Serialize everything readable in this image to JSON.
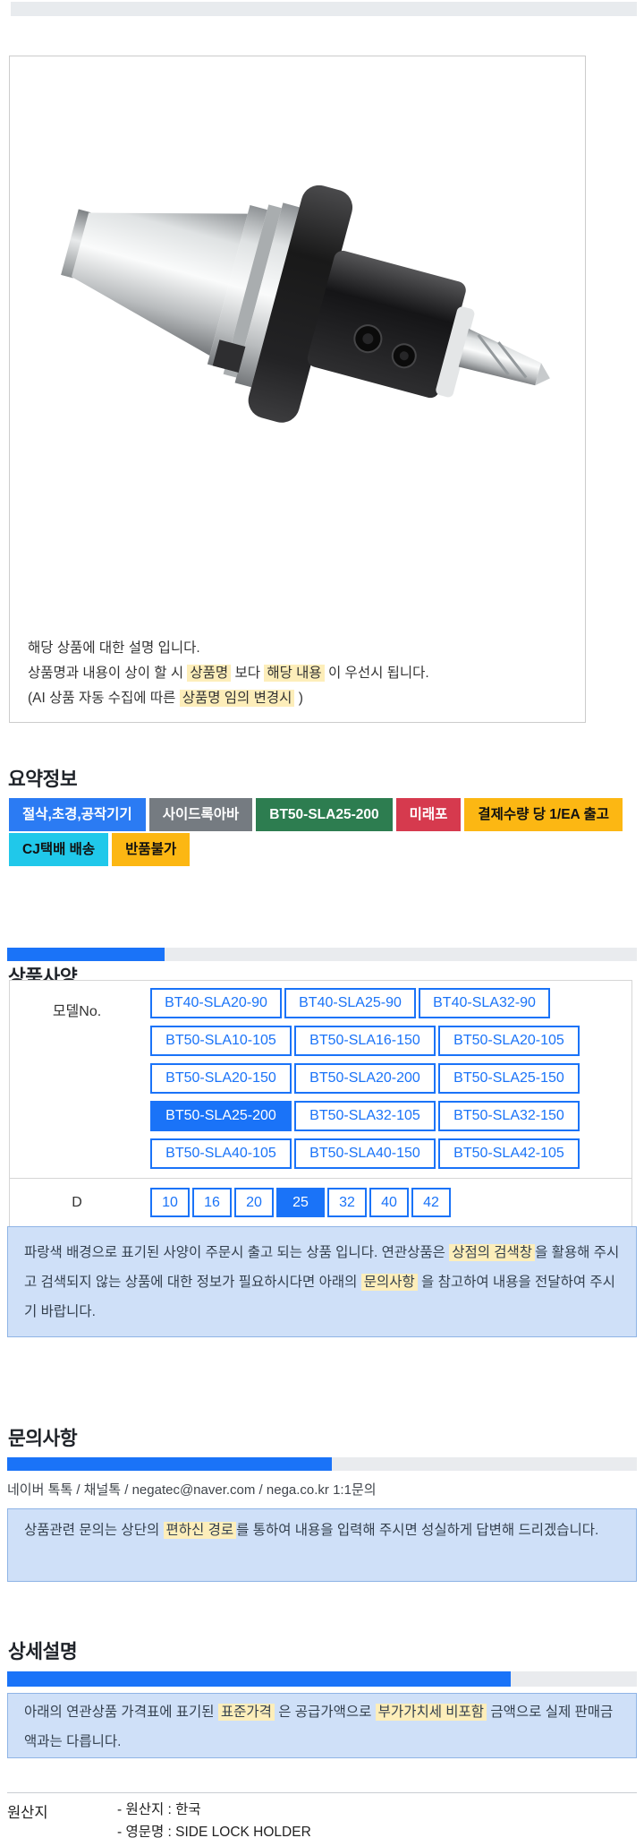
{
  "colors": {
    "accent_blue": "#1a73f8",
    "highlight_yellow": "#fdeeba",
    "note_background": "#cfe0f8",
    "note_border": "#8fb4e6",
    "scroll_track": "#e9ebee",
    "topbar_gray": "#e8ebee"
  },
  "product_box": {
    "image_name": "bt50-side-lock-holder-photo",
    "desc_lines": [
      [
        {
          "t": "해당 상품에 대한 설명 입니다.",
          "h": false
        }
      ],
      [
        {
          "t": "상품명과 내용이 상이 할 시 ",
          "h": false
        },
        {
          "t": "상품명",
          "h": true
        },
        {
          "t": " 보다 ",
          "h": false
        },
        {
          "t": "해당 내용",
          "h": true
        },
        {
          "t": " 이 우선시 됩니다.",
          "h": false
        }
      ],
      [
        {
          "t": "(AI 상품 자동 수집에 따른 ",
          "h": false
        },
        {
          "t": "상품명 임의 변경시",
          "h": true
        },
        {
          "t": " )",
          "h": false
        }
      ]
    ]
  },
  "summary": {
    "title": "요약정보",
    "tags": [
      {
        "label": "절삭,초경,공작기기",
        "bg": "#2b7bf3",
        "fg": "#ffffff"
      },
      {
        "label": "사이드록아바",
        "bg": "#757b81",
        "fg": "#ffffff"
      },
      {
        "label": "BT50-SLA25-200",
        "bg": "#2d7d50",
        "fg": "#ffffff"
      },
      {
        "label": "미래포",
        "bg": "#d63a4e",
        "fg": "#ffffff"
      },
      {
        "label": "결제수량 당 1/EA 출고",
        "bg": "#fcb713",
        "fg": "#111111"
      },
      {
        "label": "CJ택배 배송",
        "bg": "#20c8ea",
        "fg": "#111111"
      },
      {
        "label": "반품불가",
        "bg": "#fcb713",
        "fg": "#111111"
      }
    ]
  },
  "spec": {
    "title": "상품사양",
    "scrollbar": 0.25,
    "model_label": "모델No.",
    "model_rows": [
      [
        "BT40-SLA20-90",
        "BT40-SLA25-90",
        "BT40-SLA32-90"
      ],
      [
        "BT50-SLA10-105",
        "BT50-SLA16-150",
        "BT50-SLA20-105"
      ],
      [
        "BT50-SLA20-150",
        "BT50-SLA20-200",
        "BT50-SLA25-150"
      ],
      [
        "BT50-SLA25-200",
        "BT50-SLA32-105",
        "BT50-SLA32-150"
      ],
      [
        "BT50-SLA40-105",
        "BT50-SLA40-150",
        "BT50-SLA42-105"
      ]
    ],
    "selected_model": "BT50-SLA25-200",
    "d_label": "D",
    "d_values": [
      "10",
      "16",
      "20",
      "25",
      "32",
      "40",
      "42"
    ],
    "selected_d": "25",
    "note_segments": [
      {
        "t": "파랑색 배경으로 표기된 사양이 주문시 출고 되는 상품 입니다. 연관상품은 ",
        "h": false
      },
      {
        "t": "상점의 검색창",
        "h": true
      },
      {
        "t": "을 활용해 주시고 검색되지 않는 상품에 대한 정보가 필요하시다면 아래의 ",
        "h": false
      },
      {
        "t": "문의사항",
        "h": true
      },
      {
        "t": " 을 참고하여 내용을 전달하여 주시기 바랍니다.",
        "h": false
      }
    ]
  },
  "inquiry": {
    "title": "문의사항",
    "scrollbar": 0.515,
    "contact": "네이버 톡톡  /  채널톡  /  negatec@naver.com  /  nega.co.kr 1:1문의",
    "note_segments": [
      {
        "t": "상품관련 문의는 상단의 ",
        "h": false
      },
      {
        "t": "편하신 경로",
        "h": true
      },
      {
        "t": "를 통하여 내용을 입력해 주시면 성실하게 답변해 드리겠습니다.",
        "h": false
      }
    ]
  },
  "detail": {
    "title": "상세설명",
    "scrollbar": 0.8,
    "note_segments": [
      {
        "t": "아래의 연관상품 가격표에 표기된 ",
        "h": false
      },
      {
        "t": "표준가격",
        "h": true
      },
      {
        "t": " 은 공급가액으로 ",
        "h": false
      },
      {
        "t": "부가가치세 비포함",
        "h": true
      },
      {
        "t": " 금액으로 실제 판매금액과는 다릅니다.",
        "h": false
      }
    ]
  },
  "origin": {
    "label": "원산지",
    "lines": [
      "- 원산지 : 한국",
      "- 영문명 : SIDE LOCK HOLDER"
    ]
  }
}
